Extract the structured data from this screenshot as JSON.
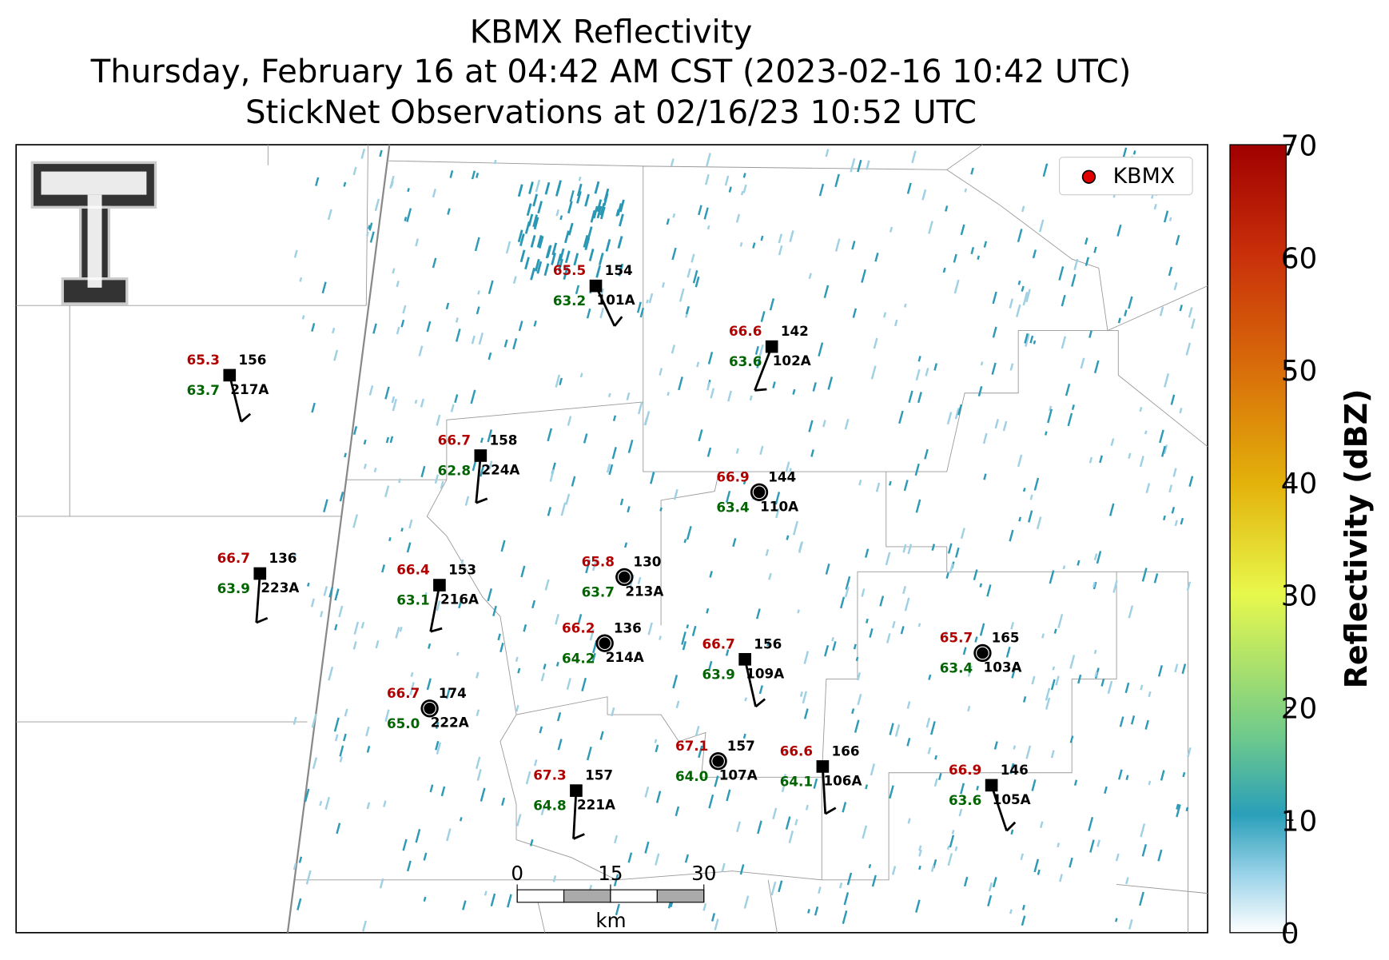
{
  "title": [
    "KBMX Reflectivity",
    "Thursday, February 16 at 04:42 AM CST (2023-02-16 10:42 UTC)",
    "StickNet Observations at 02/16/23 10:52 UTC"
  ],
  "legend": {
    "label": "KBMX",
    "color": "#e00000"
  },
  "colorbar": {
    "label": "Reflectivity (dBZ)",
    "lim": [
      0,
      70
    ],
    "ticks": [
      0,
      10,
      20,
      30,
      40,
      50,
      60,
      70
    ]
  },
  "scale_bar": {
    "lim": [
      0,
      30
    ],
    "ticks": [
      0,
      15,
      30
    ],
    "unit": "km"
  },
  "stations": [
    {
      "temp": "65.5",
      "dewpoint": "63.2",
      "value": "154",
      "id": "101A",
      "marker": "square"
    },
    {
      "temp": "66.6",
      "dewpoint": "63.6",
      "value": "142",
      "id": "102A",
      "marker": "square"
    },
    {
      "temp": "65.3",
      "dewpoint": "63.7",
      "value": "156",
      "id": "217A",
      "marker": "square"
    },
    {
      "temp": "66.7",
      "dewpoint": "62.8",
      "value": "158",
      "id": "224A",
      "marker": "square"
    },
    {
      "temp": "66.9",
      "dewpoint": "63.4",
      "value": "144",
      "id": "110A",
      "marker": "circle"
    },
    {
      "temp": "66.7",
      "dewpoint": "63.9",
      "value": "136",
      "id": "223A",
      "marker": "square"
    },
    {
      "temp": "66.4",
      "dewpoint": "63.1",
      "value": "153",
      "id": "216A",
      "marker": "square"
    },
    {
      "temp": "65.8",
      "dewpoint": "63.7",
      "value": "130",
      "id": "213A",
      "marker": "circle"
    },
    {
      "temp": "66.2",
      "dewpoint": "64.2",
      "value": "136",
      "id": "214A",
      "marker": "circle"
    },
    {
      "temp": "66.7",
      "dewpoint": "63.9",
      "value": "156",
      "id": "109A",
      "marker": "square"
    },
    {
      "temp": "65.7",
      "dewpoint": "63.4",
      "value": "165",
      "id": "103A",
      "marker": "circle"
    },
    {
      "temp": "66.7",
      "dewpoint": "65.0",
      "value": "174",
      "id": "222A",
      "marker": "circle"
    },
    {
      "temp": "67.1",
      "dewpoint": "64.0",
      "value": "157",
      "id": "107A",
      "marker": "circle"
    },
    {
      "temp": "66.6",
      "dewpoint": "64.1",
      "value": "166",
      "id": "106A",
      "marker": "square"
    },
    {
      "temp": "66.9",
      "dewpoint": "63.6",
      "value": "146",
      "id": "105A",
      "marker": "square"
    },
    {
      "temp": "67.3",
      "dewpoint": "64.8",
      "value": "157",
      "id": "221A",
      "marker": "square"
    }
  ]
}
